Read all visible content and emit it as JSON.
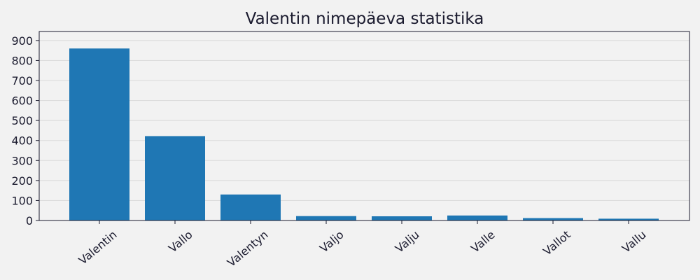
{
  "chart_data": {
    "type": "bar",
    "title": "Valentin nimepäeva statistika",
    "xlabel": "",
    "ylabel": "",
    "categories": [
      "Valentin",
      "Vallo",
      "Valentyn",
      "Valjo",
      "Valju",
      "Valle",
      "Vallot",
      "Vallu"
    ],
    "values": [
      860,
      422,
      130,
      22,
      21,
      25,
      12,
      9
    ],
    "ylim": [
      0,
      945
    ],
    "yticks": [
      0,
      100,
      200,
      300,
      400,
      500,
      600,
      700,
      800,
      900
    ],
    "grid": "y",
    "legend": "none",
    "bar_color": "#1f77b4"
  }
}
